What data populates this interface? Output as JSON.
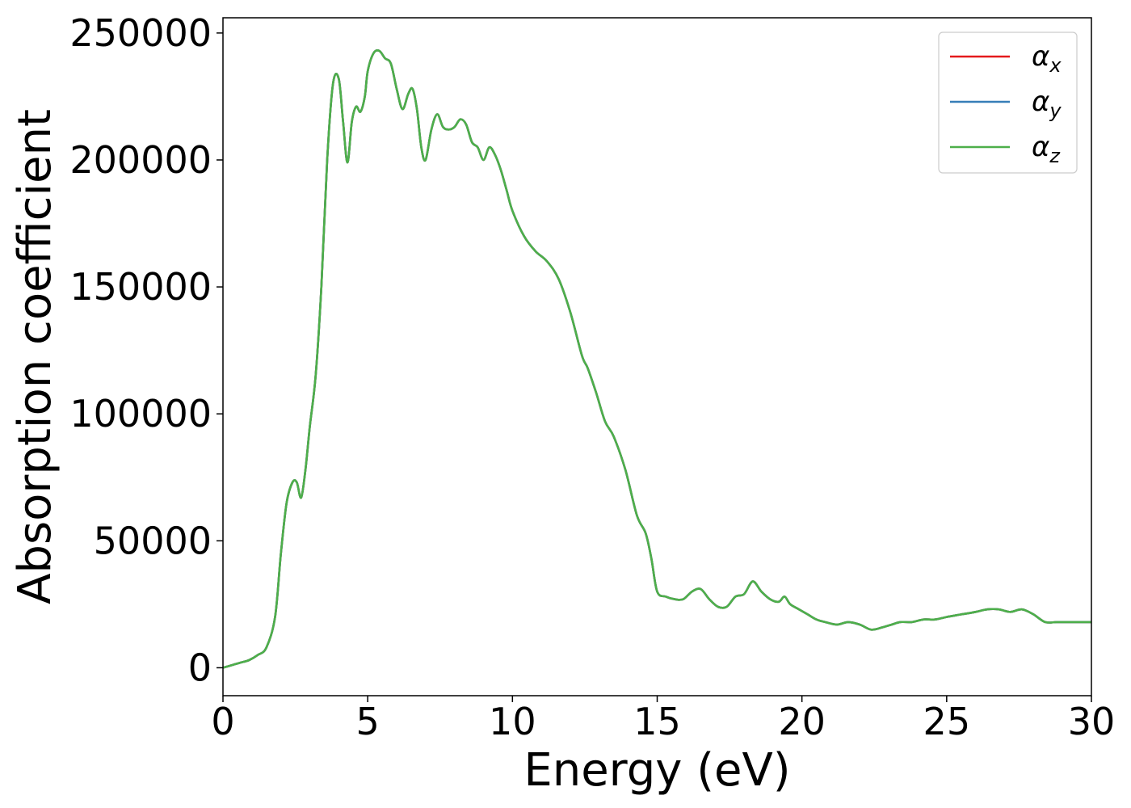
{
  "chart_data": {
    "type": "line",
    "xlabel": "Energy (eV)",
    "ylabel": "Absorption coefficient",
    "xlim": [
      0,
      30
    ],
    "ylim": [
      -11000,
      256000
    ],
    "xticks": [
      0,
      5,
      10,
      15,
      20,
      25,
      30
    ],
    "xtick_labels": [
      "0",
      "5",
      "10",
      "15",
      "20",
      "25",
      "30"
    ],
    "yticks": [
      0,
      50000,
      100000,
      150000,
      200000,
      250000
    ],
    "ytick_labels": [
      "0",
      "50000",
      "100000",
      "150000",
      "200000",
      "250000"
    ],
    "grid": false,
    "legend_position": "top-right",
    "series": [
      {
        "name": "α",
        "subscript": "x",
        "color": "#e41a1c",
        "ref": "green_curve"
      },
      {
        "name": "α",
        "subscript": "y",
        "color": "#377eb8",
        "ref": "green_curve"
      },
      {
        "name": "α",
        "subscript": "z",
        "color": "#4daf4a",
        "ref": "green_curve"
      }
    ],
    "x": [
      0,
      0.3,
      0.6,
      0.9,
      1.2,
      1.5,
      1.8,
      2.0,
      2.2,
      2.4,
      2.55,
      2.7,
      2.85,
      3.0,
      3.2,
      3.4,
      3.6,
      3.8,
      4.0,
      4.15,
      4.3,
      4.45,
      4.6,
      4.75,
      4.9,
      5.0,
      5.2,
      5.4,
      5.6,
      5.8,
      6.0,
      6.2,
      6.4,
      6.55,
      6.7,
      6.85,
      7.0,
      7.2,
      7.4,
      7.6,
      7.8,
      8.0,
      8.2,
      8.4,
      8.6,
      8.8,
      9.0,
      9.2,
      9.4,
      9.6,
      9.8,
      10.0,
      10.4,
      10.8,
      11.2,
      11.6,
      12.0,
      12.4,
      12.6,
      12.9,
      13.2,
      13.5,
      13.9,
      14.3,
      14.6,
      14.8,
      15.0,
      15.3,
      15.6,
      15.9,
      16.2,
      16.5,
      16.8,
      17.1,
      17.4,
      17.7,
      18.0,
      18.3,
      18.6,
      18.9,
      19.2,
      19.4,
      19.6,
      19.9,
      20.2,
      20.5,
      20.8,
      21.2,
      21.6,
      22.0,
      22.4,
      22.8,
      23.1,
      23.4,
      23.8,
      24.2,
      24.6,
      25.0,
      25.5,
      26.0,
      26.4,
      26.8,
      27.2,
      27.6,
      28.0,
      28.4,
      28.8,
      29.2,
      29.6,
      30.0
    ],
    "y": [
      0,
      1000,
      2000,
      3000,
      5000,
      8000,
      20000,
      45000,
      65000,
      73000,
      73000,
      67000,
      78000,
      95000,
      115000,
      150000,
      200000,
      230000,
      232000,
      215000,
      199000,
      215000,
      221000,
      219000,
      225000,
      235000,
      242000,
      243000,
      240000,
      238000,
      228000,
      220000,
      226000,
      228000,
      220000,
      205000,
      200000,
      212000,
      218000,
      213000,
      212000,
      213000,
      216000,
      214000,
      207000,
      205000,
      200000,
      205000,
      202000,
      196000,
      188000,
      180000,
      170000,
      164000,
      160000,
      153000,
      140000,
      123000,
      118000,
      108000,
      97000,
      91000,
      78000,
      60000,
      53000,
      43000,
      30000,
      28000,
      27000,
      27000,
      30000,
      31000,
      27000,
      24000,
      24000,
      28000,
      29000,
      34000,
      30000,
      27000,
      26000,
      28000,
      25000,
      23000,
      21000,
      19000,
      18000,
      17000,
      18000,
      17000,
      15000,
      16000,
      17000,
      18000,
      18000,
      19000,
      19000,
      20000,
      21000,
      22000,
      23000,
      23000,
      22000,
      23000,
      21000,
      18000,
      18000,
      18000,
      18000,
      18000
    ]
  }
}
